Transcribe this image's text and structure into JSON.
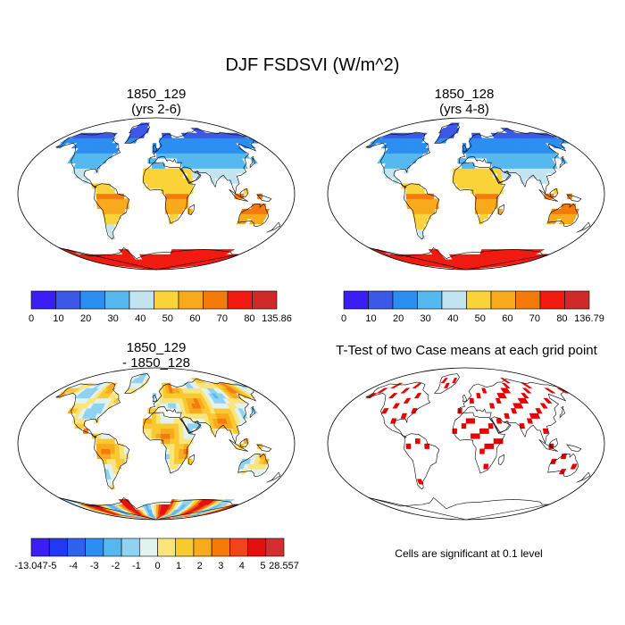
{
  "title": "DJF FSDSVI (W/m^2)",
  "colors": {
    "abs_scale": [
      "#3b1ef5",
      "#3b58e6",
      "#2b8ef0",
      "#55b8ee",
      "#c2e4f0",
      "#fad338",
      "#f8a91c",
      "#f57a0c",
      "#f01a10",
      "#cf2a2a"
    ],
    "diff_scale": [
      "#3b1ef5",
      "#2238f3",
      "#2d62ec",
      "#2b8ef0",
      "#55b8ee",
      "#8fd2f1",
      "#e2f2ee",
      "#fae47c",
      "#f8c931",
      "#f8a91c",
      "#f57a0c",
      "#f0451a",
      "#e41010",
      "#d23030"
    ],
    "significant": "#e80000",
    "coast": "#000000"
  },
  "chart_data": [
    {
      "type": "heatmap",
      "title": "1850_129",
      "subtitle": "(yrs 2-6)",
      "colorbar_labels": [
        "0",
        "10",
        "20",
        "30",
        "40",
        "50",
        "60",
        "70",
        "80",
        "135.86"
      ],
      "colorbar_min": 0,
      "colorbar_max": 135.86
    },
    {
      "type": "heatmap",
      "title": "1850_128",
      "subtitle": "(yrs 4-8)",
      "colorbar_labels": [
        "0",
        "10",
        "20",
        "30",
        "40",
        "50",
        "60",
        "70",
        "80",
        "136.79"
      ],
      "colorbar_min": 0,
      "colorbar_max": 136.79
    },
    {
      "type": "heatmap",
      "title": "1850_129",
      "subtitle": "- 1850_128",
      "colorbar_labels": [
        "-13.047",
        "-5",
        "-4",
        "-3",
        "-2",
        "-1",
        "0",
        "1",
        "2",
        "3",
        "4",
        "5",
        "28.557"
      ],
      "colorbar_min": -13.047,
      "colorbar_max": 28.557
    },
    {
      "type": "heatmap",
      "title": "T-Test of two Case means at each grid point",
      "note": "Cells are significant at 0.1 level"
    }
  ]
}
